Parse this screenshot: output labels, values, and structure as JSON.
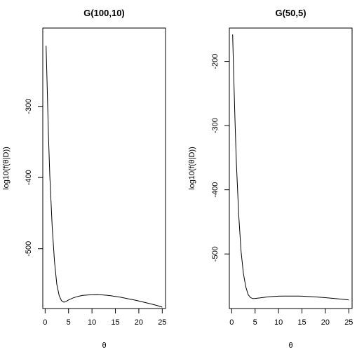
{
  "chart_data": [
    {
      "type": "line",
      "title": "G(100,10)",
      "xlabel": "θ",
      "ylabel": "log10(f(θ|D))",
      "xlim": [
        -0.5,
        25.7
      ],
      "ylim": [
        -584,
        -190
      ],
      "xticks": [
        "0",
        "5",
        "10",
        "15",
        "20",
        "25"
      ],
      "yticks": [
        "-300",
        "-400",
        "-500"
      ],
      "grid": false,
      "series": [
        {
          "x": [
            0.2,
            0.4,
            0.7,
            1.0,
            1.5,
            2.0,
            2.5,
            3.0,
            3.5,
            4.0,
            4.5,
            5.0,
            6.0,
            7.0,
            8.0,
            9.0,
            10.0,
            11.0,
            12.0,
            13.0,
            14.0,
            15.0,
            16.0,
            17.0,
            18.0,
            19.0,
            20.0,
            21.0,
            22.0,
            23.0,
            24.0,
            25.0
          ],
          "y": [
            -215,
            -262,
            -338,
            -397,
            -469,
            -518,
            -550,
            -566,
            -573,
            -575,
            -574,
            -572,
            -569,
            -567,
            -565.5,
            -565,
            -564.7,
            -564.6,
            -564.8,
            -565.3,
            -566,
            -567,
            -568,
            -569.3,
            -570.7,
            -572,
            -573.5,
            -575,
            -576.6,
            -578.2,
            -580,
            -582
          ]
        }
      ]
    },
    {
      "type": "line",
      "title": "G(50,5)",
      "xlabel": "θ",
      "ylabel": "log10(f(θ|D))",
      "xlim": [
        -0.5,
        25.7
      ],
      "ylim": [
        -585,
        -148
      ],
      "xticks": [
        "0",
        "5",
        "10",
        "15",
        "20",
        "25"
      ],
      "yticks": [
        "-200",
        "-300",
        "-400",
        "-500"
      ],
      "grid": false,
      "series": [
        {
          "x": [
            0.2,
            0.4,
            0.7,
            1.0,
            1.5,
            2.0,
            2.5,
            3.0,
            3.5,
            4.0,
            4.5,
            5.0,
            6.0,
            7.0,
            8.0,
            9.0,
            10.0,
            11.0,
            12.0,
            13.0,
            14.0,
            15.0,
            16.0,
            17.0,
            18.0,
            19.0,
            20.0,
            21.0,
            22.0,
            23.0,
            24.0,
            25.0
          ],
          "y": [
            -158,
            -213,
            -290,
            -358,
            -440,
            -496,
            -530,
            -551,
            -563,
            -568,
            -569.5,
            -569.3,
            -568.5,
            -567.5,
            -566.7,
            -566.2,
            -565.8,
            -565.6,
            -565.5,
            -565.5,
            -565.6,
            -565.8,
            -566.1,
            -566.5,
            -567,
            -567.5,
            -568.1,
            -568.7,
            -569.4,
            -570.1,
            -570.8,
            -571.6
          ]
        }
      ]
    }
  ]
}
